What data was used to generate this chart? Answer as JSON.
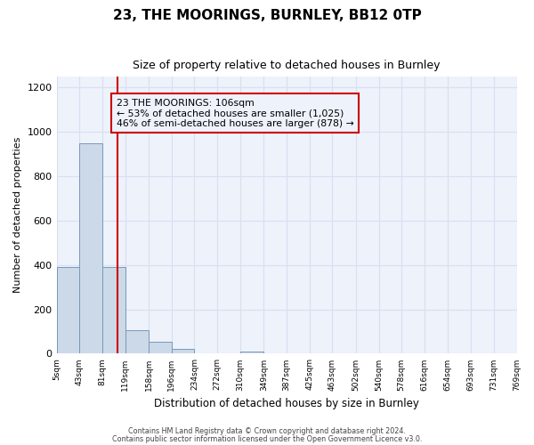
{
  "title": "23, THE MOORINGS, BURNLEY, BB12 0TP",
  "subtitle": "Size of property relative to detached houses in Burnley",
  "xlabel": "Distribution of detached houses by size in Burnley",
  "ylabel": "Number of detached properties",
  "bin_edges": [
    5,
    43,
    81,
    119,
    158,
    196,
    234,
    272,
    310,
    349,
    387,
    425,
    463,
    502,
    540,
    578,
    616,
    654,
    693,
    731,
    769
  ],
  "bar_heights": [
    390,
    950,
    390,
    105,
    52,
    22,
    0,
    0,
    10,
    0,
    0,
    0,
    0,
    0,
    0,
    0,
    0,
    0,
    0,
    0
  ],
  "bar_color": "#ccd9e8",
  "bar_edgecolor": "#7799bb",
  "grid_color": "#d8dff0",
  "property_size": 106,
  "property_line_color": "#cc0000",
  "annotation_box_edgecolor": "#cc0000",
  "annotation_text": "23 THE MOORINGS: 106sqm\n← 53% of detached houses are smaller (1,025)\n46% of semi-detached houses are larger (878) →",
  "ylim": [
    0,
    1250
  ],
  "yticks": [
    0,
    200,
    400,
    600,
    800,
    1000,
    1200
  ],
  "tick_labels": [
    "5sqm",
    "43sqm",
    "81sqm",
    "119sqm",
    "158sqm",
    "196sqm",
    "234sqm",
    "272sqm",
    "310sqm",
    "349sqm",
    "387sqm",
    "425sqm",
    "463sqm",
    "502sqm",
    "540sqm",
    "578sqm",
    "616sqm",
    "654sqm",
    "693sqm",
    "731sqm",
    "769sqm"
  ],
  "footer_line1": "Contains HM Land Registry data © Crown copyright and database right 2024.",
  "footer_line2": "Contains public sector information licensed under the Open Government Licence v3.0.",
  "bg_color": "#ffffff",
  "plot_bg_color": "#eef2fb"
}
